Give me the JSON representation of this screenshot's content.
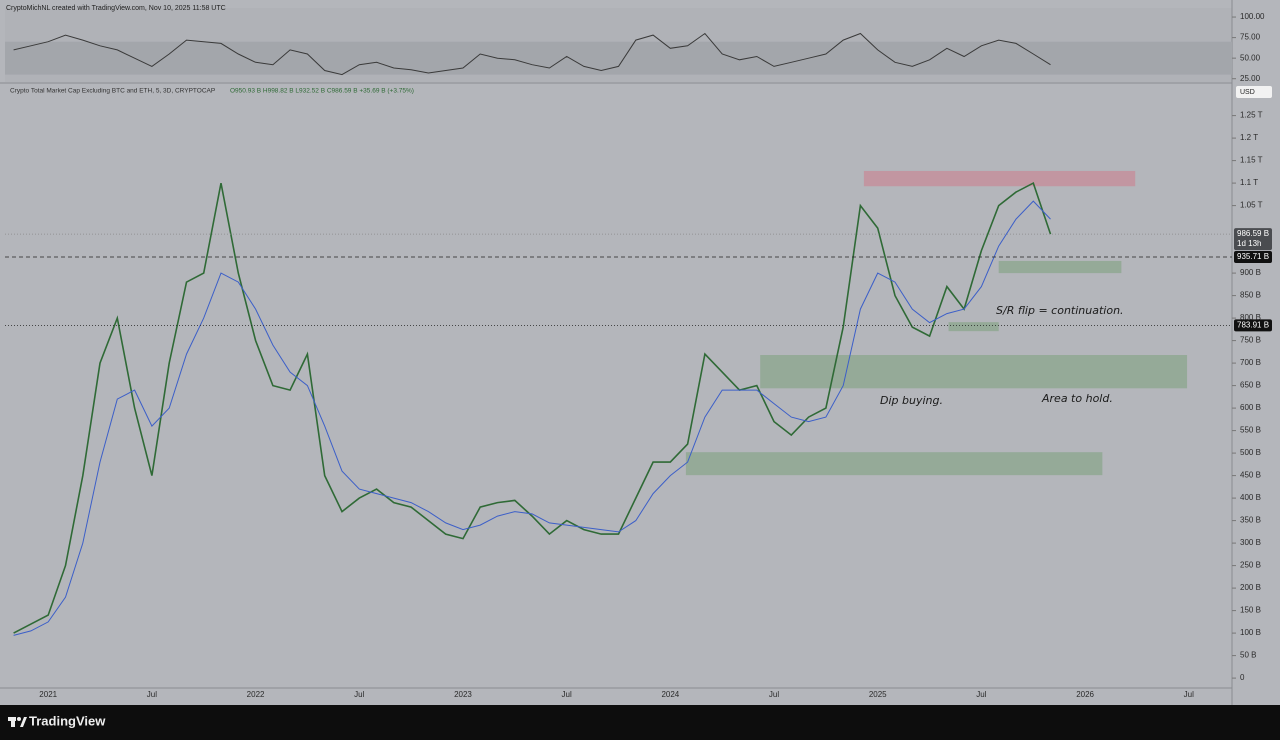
{
  "header": {
    "credit": "CryptoMichNL created with TradingView.com, Nov 10, 2025 11:58 UTC",
    "symbol": "Crypto Total Market Cap Excluding BTC and ETH, 5, 3D, CRYPTOCAP",
    "ohlc": "O950.93 B H998.82 B L932.52 B C986.59 B +35.69 B (+3.75%)",
    "currency": "USD",
    "brand": "TradingView"
  },
  "chart_data": [
    {
      "type": "line",
      "color": "#3a3a3a",
      "band": [
        30,
        70
      ],
      "band_color": "#a3a6ab",
      "ylim": [
        21,
        111
      ],
      "yticks": [
        {
          "value": 25,
          "label": "25.00"
        },
        {
          "value": 50,
          "label": "50.00"
        },
        {
          "value": 75,
          "label": "75.00"
        },
        {
          "value": 100,
          "label": "100.00"
        }
      ],
      "values": [
        60,
        65,
        70,
        78,
        72,
        65,
        60,
        50,
        40,
        55,
        72,
        70,
        68,
        55,
        45,
        42,
        60,
        55,
        35,
        30,
        42,
        45,
        38,
        36,
        32,
        35,
        38,
        55,
        50,
        48,
        42,
        38,
        52,
        40,
        35,
        40,
        72,
        78,
        62,
        65,
        80,
        55,
        48,
        52,
        40,
        45,
        50,
        55,
        72,
        80,
        60,
        45,
        40,
        48,
        62,
        52,
        65,
        72,
        68,
        55,
        42
      ]
    },
    {
      "type": "line",
      "categories": [
        null,
        null,
        "2021",
        null,
        null,
        null,
        null,
        null,
        "Jul",
        null,
        null,
        null,
        null,
        null,
        "2022",
        null,
        null,
        null,
        null,
        null,
        "Jul",
        null,
        null,
        null,
        null,
        null,
        "2023",
        null,
        null,
        null,
        null,
        null,
        "Jul",
        null,
        null,
        null,
        null,
        null,
        "2024",
        null,
        null,
        null,
        null,
        null,
        "Jul",
        null,
        null,
        null,
        null,
        null,
        "2025",
        null,
        null,
        null,
        null,
        null,
        "Jul",
        null,
        null,
        null,
        null,
        null,
        "2026",
        null,
        null,
        null,
        null,
        null,
        "Jul",
        null,
        null
      ],
      "series": [
        {
          "color": "#2f6a36",
          "values": [
            100,
            120,
            140,
            250,
            450,
            700,
            800,
            600,
            450,
            700,
            880,
            900,
            1100,
            900,
            750,
            650,
            640,
            720,
            450,
            370,
            400,
            420,
            390,
            380,
            350,
            320,
            310,
            380,
            390,
            395,
            360,
            320,
            350,
            330,
            320,
            320,
            400,
            480,
            480,
            520,
            720,
            680,
            640,
            650,
            570,
            540,
            580,
            600,
            780,
            1050,
            1000,
            850,
            780,
            760,
            870,
            820,
            950,
            1050,
            1080,
            1100,
            986.59,
            null,
            null,
            null,
            null,
            null,
            null,
            null,
            null,
            null,
            null
          ]
        },
        {
          "color": "#3c5fc8",
          "values": [
            95,
            105,
            125,
            180,
            300,
            480,
            620,
            640,
            560,
            600,
            720,
            800,
            900,
            880,
            820,
            740,
            680,
            650,
            560,
            460,
            420,
            410,
            400,
            390,
            370,
            345,
            330,
            340,
            360,
            370,
            365,
            345,
            340,
            335,
            330,
            325,
            350,
            410,
            450,
            480,
            580,
            640,
            640,
            640,
            610,
            580,
            570,
            580,
            650,
            820,
            900,
            880,
            820,
            790,
            810,
            820,
            870,
            960,
            1020,
            1060,
            1020,
            null,
            null,
            null,
            null,
            null,
            null,
            null,
            null,
            null,
            null
          ]
        }
      ],
      "ylim": [
        -22,
        1318
      ],
      "yticks": [
        {
          "value": 0,
          "label": "0"
        },
        {
          "value": 50,
          "label": "50 B"
        },
        {
          "value": 100,
          "label": "100 B"
        },
        {
          "value": 150,
          "label": "150 B"
        },
        {
          "value": 200,
          "label": "200 B"
        },
        {
          "value": 250,
          "label": "250 B"
        },
        {
          "value": 300,
          "label": "300 B"
        },
        {
          "value": 350,
          "label": "350 B"
        },
        {
          "value": 400,
          "label": "400 B"
        },
        {
          "value": 450,
          "label": "450 B"
        },
        {
          "value": 500,
          "label": "500 B"
        },
        {
          "value": 550,
          "label": "550 B"
        },
        {
          "value": 600,
          "label": "600 B"
        },
        {
          "value": 650,
          "label": "650 B"
        },
        {
          "value": 700,
          "label": "700 B"
        },
        {
          "value": 750,
          "label": "750 B"
        },
        {
          "value": 800,
          "label": "800 B"
        },
        {
          "value": 850,
          "label": "850 B"
        },
        {
          "value": 900,
          "label": "900 B"
        },
        {
          "value": 1050,
          "label": "1.05 T"
        },
        {
          "value": 1100,
          "label": "1.1 T"
        },
        {
          "value": 1150,
          "label": "1.15 T"
        },
        {
          "value": 1200,
          "label": "1.2 T"
        },
        {
          "value": 1250,
          "label": "1.25 T"
        }
      ],
      "grid": false,
      "zones": [
        {
          "color": "#c4919c",
          "ylim": [
            1093,
            1127
          ],
          "x": [
            49.2,
            64.9
          ]
        },
        {
          "color": "#8fa892",
          "ylim": [
            900,
            927
          ],
          "x": [
            57.0,
            64.1
          ]
        },
        {
          "color": "#8fa892",
          "ylim": [
            771,
            791
          ],
          "x": [
            54.1,
            57.0
          ]
        },
        {
          "color": "#8fa892",
          "ylim": [
            644,
            718
          ],
          "x": [
            43.2,
            67.9
          ]
        },
        {
          "color": "#8fa892",
          "ylim": [
            451,
            502
          ],
          "x": [
            38.9,
            63.0
          ]
        }
      ],
      "last_price": {
        "value": 986.59,
        "label": "986.59 B"
      },
      "countdown": "1d 13h",
      "price_lines": [
        {
          "value": 935.71,
          "label": "935.71 B"
        },
        {
          "value": 783.91,
          "label": "783.91 B"
        }
      ],
      "annotations": [
        "S/R flip = continuation.",
        "Area to hold.",
        "Dip buying."
      ]
    }
  ]
}
